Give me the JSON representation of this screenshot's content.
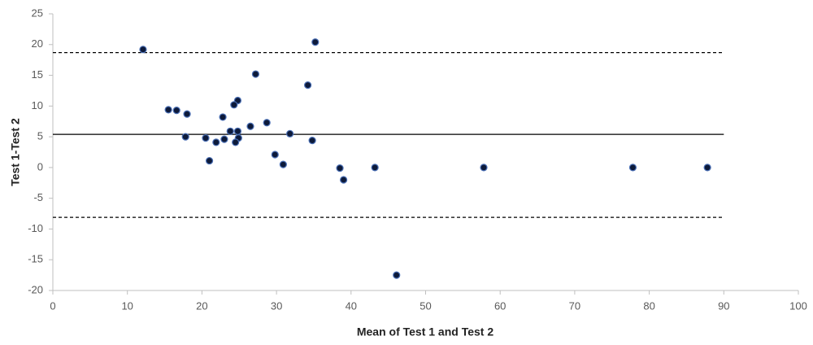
{
  "chart_data": {
    "type": "scatter",
    "x_label": "Mean of Test 1 and Test 2",
    "y_label": "Test 1-Test 2",
    "xlim": [
      0,
      100
    ],
    "xticks": [
      0,
      10,
      20,
      30,
      40,
      50,
      60,
      70,
      80,
      90,
      100
    ],
    "ylim": [
      -20,
      25
    ],
    "yticks": [
      -20,
      -15,
      -10,
      -5,
      0,
      5,
      10,
      15,
      20,
      25
    ],
    "grid": false,
    "series": [
      {
        "color": "#0d1a3a",
        "x": [
          12.1,
          35.2,
          27.2,
          34.2,
          15.5,
          16.6,
          18.0,
          24.8,
          24.3,
          22.8,
          28.7,
          26.5,
          23.8,
          24.8,
          31.8,
          17.8,
          20.5,
          23.0,
          24.9,
          21.9,
          24.5,
          34.8,
          29.8,
          21.0,
          30.9,
          38.5,
          39.0,
          43.2,
          57.8,
          77.8,
          87.8,
          46.1
        ],
        "values": [
          19.2,
          20.4,
          15.2,
          13.4,
          9.4,
          9.3,
          8.7,
          10.9,
          10.2,
          8.2,
          7.3,
          6.7,
          5.9,
          5.9,
          5.5,
          5.0,
          4.8,
          4.6,
          4.8,
          4.1,
          4.1,
          4.4,
          2.1,
          1.1,
          0.5,
          -0.1,
          -2.0,
          0,
          0,
          0,
          0,
          -17.5
        ]
      }
    ],
    "hlines": [
      {
        "y": 18.7,
        "x": [
          0,
          90
        ],
        "style": "dashed"
      },
      {
        "y": 5.4,
        "x": [
          0,
          90
        ],
        "style": "solid"
      },
      {
        "y": -8.1,
        "x": [
          0,
          90
        ],
        "style": "dashed"
      }
    ]
  }
}
